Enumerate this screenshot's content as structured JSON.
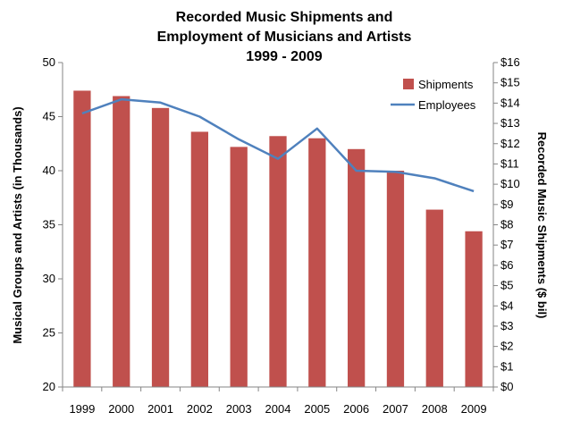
{
  "chart_data": {
    "type": "bar",
    "title_lines": [
      "Recorded Music Shipments and",
      "Employment of Musicians and Artists",
      "1999 - 2009"
    ],
    "categories": [
      "1999",
      "2000",
      "2001",
      "2002",
      "2003",
      "2004",
      "2005",
      "2006",
      "2007",
      "2008",
      "2009"
    ],
    "ylabel": "Musical Groups and Artists (in Thousands)",
    "y2label": "Recorded Music Shipments ($ bil)",
    "ylim": [
      20,
      50
    ],
    "y_ticks": [
      20,
      25,
      30,
      35,
      40,
      45,
      50
    ],
    "y2lim": [
      0,
      16
    ],
    "y2_ticks": [
      "$0",
      "$1",
      "$2",
      "$3",
      "$4",
      "$5",
      "$6",
      "$7",
      "$8",
      "$9",
      "$10",
      "$11",
      "$12",
      "$13",
      "$14",
      "$15",
      "$16"
    ],
    "series": [
      {
        "name": "Shipments",
        "type": "bar",
        "axis": "left",
        "color": "#c0504d",
        "values": [
          47.4,
          46.9,
          45.8,
          43.6,
          42.2,
          43.2,
          43.0,
          42.0,
          40.0,
          36.4,
          34.4
        ]
      },
      {
        "name": "Employees",
        "type": "line",
        "axis": "left",
        "color": "#4f81bd",
        "values": [
          45.3,
          46.6,
          46.3,
          45.0,
          42.9,
          41.1,
          43.9,
          40.0,
          39.9,
          39.3,
          38.1
        ]
      }
    ],
    "legend_position": "top-right",
    "grid": false
  }
}
